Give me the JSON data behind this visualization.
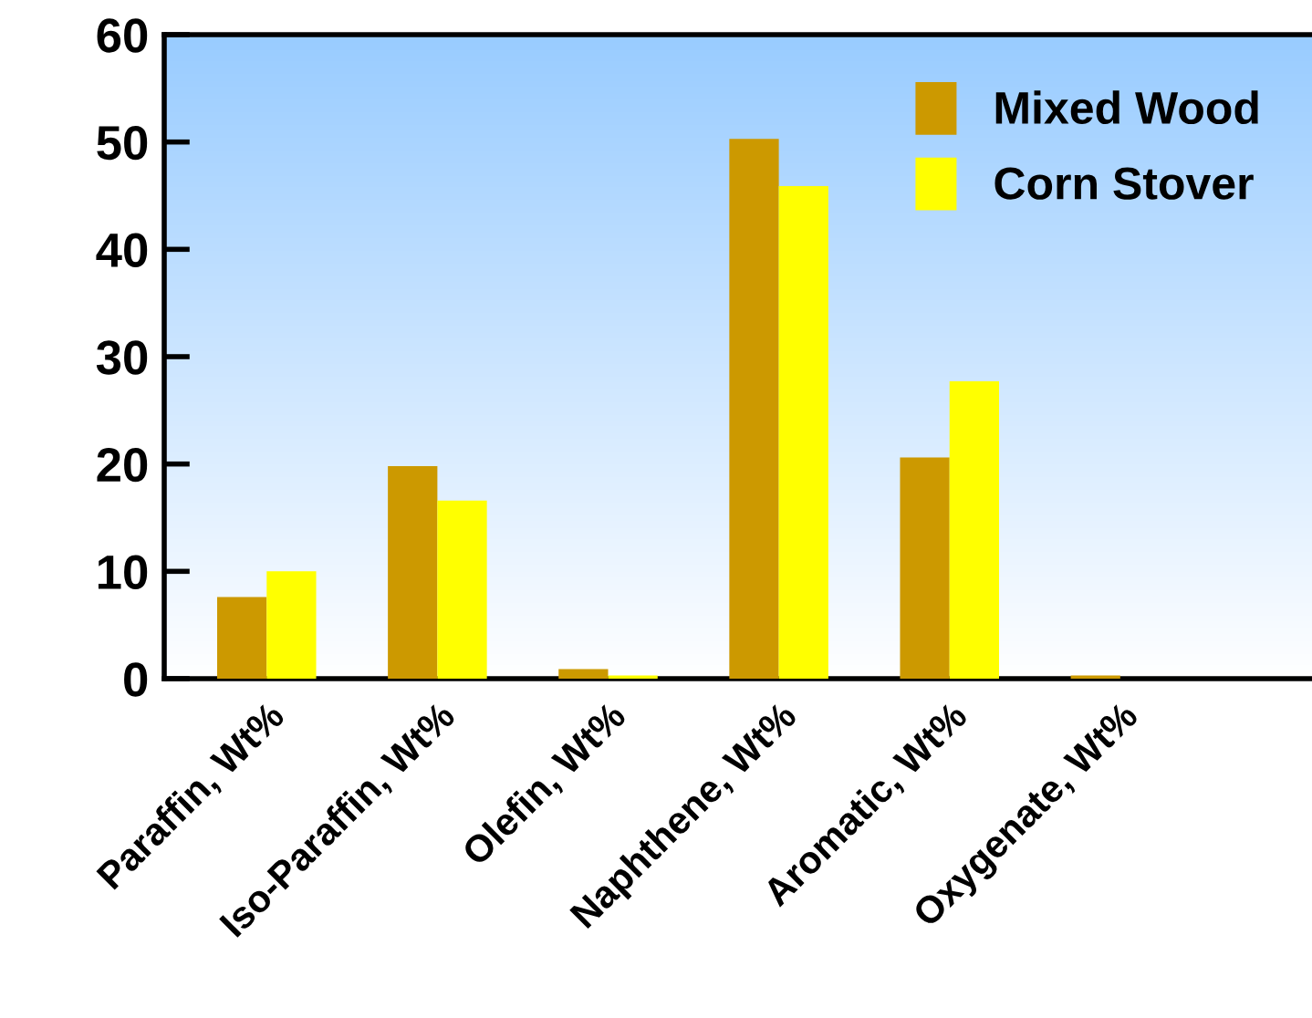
{
  "chart_data": {
    "type": "bar",
    "categories": [
      "Paraffin, Wt%",
      "Iso-Paraffin, Wt%",
      "Olefin, Wt%",
      "Naphthene, Wt%",
      "Aromatic, Wt%",
      "Oxygenate, Wt%"
    ],
    "series": [
      {
        "name": "Mixed Wood",
        "color": "#cc9900",
        "values": [
          7.6,
          19.8,
          0.9,
          50.3,
          20.6,
          0.3
        ]
      },
      {
        "name": "Corn Stover",
        "color": "#ffff00",
        "values": [
          10.0,
          16.6,
          0.3,
          45.9,
          27.7,
          0.0
        ]
      }
    ],
    "ylim": [
      0,
      60
    ],
    "yticks": [
      0,
      10,
      20,
      30,
      40,
      50,
      60
    ],
    "grid": false,
    "legend": "top right"
  }
}
